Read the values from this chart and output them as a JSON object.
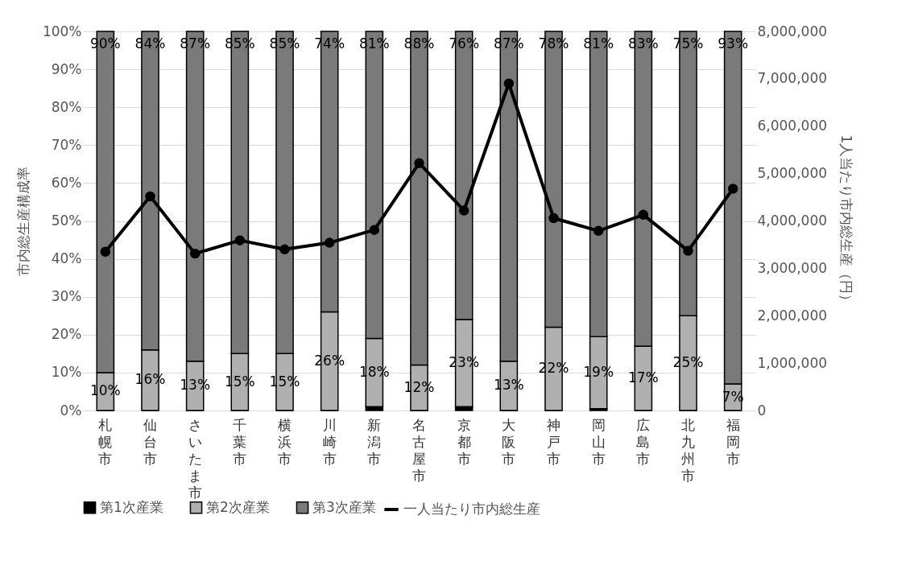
{
  "chart_data": {
    "type": "bar",
    "stacked": true,
    "ylabel": "市内総生産構成率",
    "y2label": "1人当たり市内総生産（円）",
    "categories": [
      "札幌市",
      "仙台市",
      "さいたま市",
      "千葉市",
      "横浜市",
      "川崎市",
      "新潟市",
      "名古屋市",
      "京都市",
      "大阪市",
      "神戸市",
      "岡山市",
      "広島市",
      "北九州市",
      "福岡市"
    ],
    "series": [
      {
        "name": "第1次産業",
        "color": "#000000",
        "values": [
          0,
          0,
          0,
          0,
          0,
          0,
          1,
          0,
          1,
          0,
          0,
          0.5,
          0,
          0,
          0
        ]
      },
      {
        "name": "第2次産業",
        "color": "#b0b0b0",
        "values": [
          10,
          16,
          13,
          15,
          15,
          26,
          18,
          12,
          23,
          13,
          22,
          19,
          17,
          25,
          7
        ],
        "value_labels": [
          "10%",
          "16%",
          "13%",
          "15%",
          "15%",
          "26%",
          "18%",
          "12%",
          "23%",
          "13%",
          "22%",
          "19%",
          "17%",
          "25%",
          "7%"
        ]
      },
      {
        "name": "第3次産業",
        "color": "#7a7a7a",
        "values": [
          90,
          84,
          87,
          85,
          85,
          74,
          81,
          88,
          76,
          87,
          78,
          80.5,
          83,
          75,
          93
        ],
        "value_labels": [
          "90%",
          "84%",
          "87%",
          "85%",
          "85%",
          "74%",
          "81%",
          "88%",
          "76%",
          "87%",
          "78%",
          "81%",
          "83%",
          "75%",
          "93%"
        ]
      },
      {
        "name": "一人当たり市内総生産",
        "type": "line",
        "axis": "y2",
        "color": "#000000",
        "values": [
          3350000,
          4520000,
          3310000,
          3590000,
          3400000,
          3540000,
          3810000,
          5220000,
          4220000,
          6900000,
          4060000,
          3790000,
          4130000,
          3370000,
          4680000
        ]
      }
    ],
    "ylim": [
      0,
      100
    ],
    "yticks": [
      {
        "value": 0,
        "label": "0%"
      },
      {
        "value": 10,
        "label": "10%"
      },
      {
        "value": 20,
        "label": "20%"
      },
      {
        "value": 30,
        "label": "30%"
      },
      {
        "value": 40,
        "label": "40%"
      },
      {
        "value": 50,
        "label": "50%"
      },
      {
        "value": 60,
        "label": "60%"
      },
      {
        "value": 70,
        "label": "70%"
      },
      {
        "value": 80,
        "label": "80%"
      },
      {
        "value": 90,
        "label": "90%"
      },
      {
        "value": 100,
        "label": "100%"
      }
    ],
    "y2lim": [
      0,
      8000000
    ],
    "y2ticks": [
      0,
      {
        "value": 1000000,
        "label": "1,000,000"
      },
      {
        "value": 2000000,
        "label": "2,000,000"
      },
      {
        "value": 3000000,
        "label": "3,000,000"
      },
      {
        "value": 4000000,
        "label": "4,000,000"
      },
      {
        "value": 5000000,
        "label": "5,000,000"
      },
      {
        "value": 6000000,
        "label": "6,000,000"
      },
      {
        "value": 7000000,
        "label": "7,000,000"
      },
      {
        "value": 8000000,
        "label": "8,000,000"
      }
    ],
    "grid": "y",
    "legend": "bottom",
    "marker": "circle",
    "line_style": "solid"
  }
}
